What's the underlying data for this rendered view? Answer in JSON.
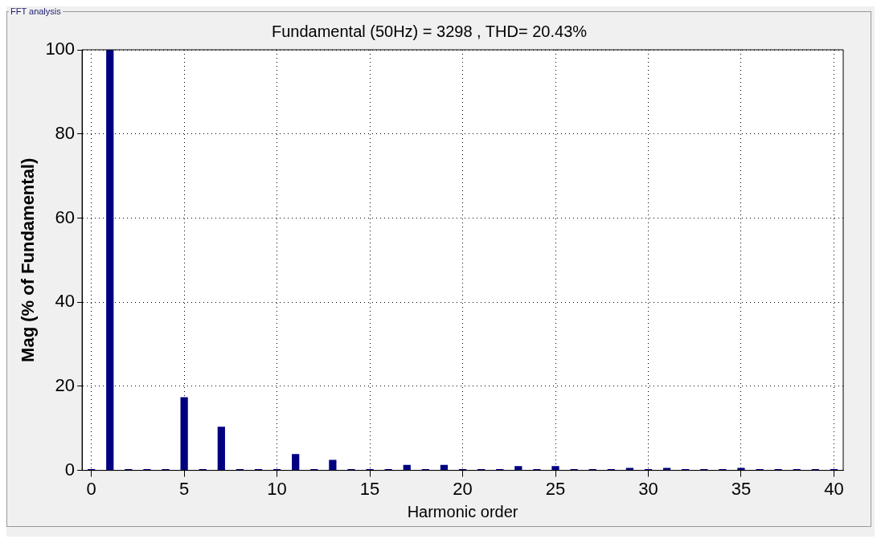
{
  "chart_data": {
    "type": "bar",
    "title": "Fundamental (50Hz) = 3298 , THD= 20.43%",
    "xlabel": "Harmonic order",
    "ylabel": "Mag (% of Fundamental)",
    "annotations": [
      "FFT analysis"
    ],
    "categories": [
      "0",
      null,
      null,
      null,
      null,
      "5",
      null,
      null,
      null,
      null,
      "10",
      null,
      null,
      null,
      null,
      "15",
      null,
      null,
      null,
      null,
      "20",
      null,
      null,
      null,
      null,
      "25",
      null,
      null,
      null,
      null,
      "30",
      null,
      null,
      null,
      null,
      "35",
      null,
      null,
      null,
      null,
      "40"
    ],
    "values": [
      0.3,
      100,
      0.3,
      0.3,
      0.3,
      17.4,
      0.3,
      10.4,
      0.3,
      0.3,
      0.3,
      3.9,
      0.3,
      2.5,
      0.3,
      0.3,
      0.3,
      1.3,
      0.3,
      1.3,
      0.3,
      0.3,
      0.3,
      1.0,
      0.3,
      1.0,
      0.3,
      0.3,
      0.3,
      0.6,
      0.3,
      0.6,
      0.3,
      0.3,
      0.3,
      0.6,
      0.3,
      0.3,
      0.3,
      0.3,
      0.3
    ],
    "color": "#000080",
    "ylim": [
      0,
      100
    ],
    "yticks": [
      0,
      20,
      40,
      60,
      80,
      100
    ],
    "grid": true
  }
}
